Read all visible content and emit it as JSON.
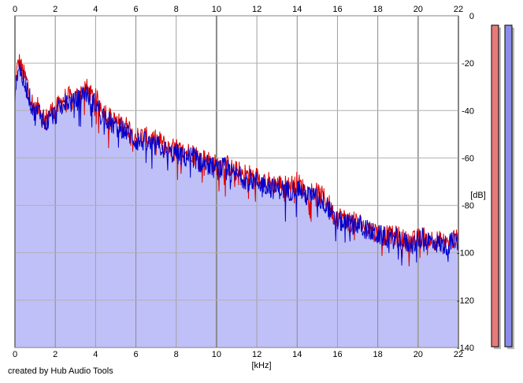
{
  "footer": {
    "credit": "created by Hub Audio Tools"
  },
  "meters": {
    "left": {
      "color": "#e77b7b",
      "level": 0.0
    },
    "right": {
      "color": "#8b8bea",
      "level": 0.0
    }
  },
  "chart_data": {
    "type": "area",
    "title": "",
    "xlabel": "[kHz]",
    "ylabel": "[dB]",
    "xlim": [
      0,
      22
    ],
    "ylim": [
      -140,
      0
    ],
    "x_ticks": [
      0,
      2,
      4,
      6,
      8,
      10,
      12,
      14,
      16,
      18,
      20,
      22
    ],
    "y_ticks": [
      0,
      -20,
      -40,
      -60,
      -80,
      -100,
      -120,
      -140
    ],
    "x_tick_labels": [
      "0",
      "2",
      "4",
      "6",
      "8",
      "10",
      "12",
      "14",
      "16",
      "18",
      "20",
      "22"
    ],
    "y_tick_labels": [
      "0",
      "-20",
      "-40",
      "-60",
      "-80",
      "-100",
      "-120",
      "-140"
    ],
    "grid": true,
    "fill_color": "#c0c0f8",
    "series": [
      {
        "color": "#dd0000",
        "x": [
          0,
          0.1,
          0.2,
          0.4,
          0.6,
          0.8,
          1.0,
          1.2,
          1.5,
          1.8,
          2.0,
          2.3,
          2.6,
          2.9,
          3.2,
          3.5,
          3.8,
          4.0,
          4.3,
          4.6,
          5.0,
          5.4,
          5.8,
          6.0,
          6.4,
          6.8,
          7.2,
          7.6,
          8.0,
          8.4,
          8.8,
          9.2,
          9.6,
          10.0,
          10.4,
          10.8,
          11.2,
          11.6,
          12.0,
          12.4,
          12.8,
          13.2,
          13.6,
          14.0,
          14.4,
          14.8,
          15.2,
          15.5,
          15.8,
          16.2,
          16.6,
          17.0,
          17.4,
          17.8,
          18.2,
          18.6,
          19.0,
          19.4,
          19.8,
          20.2,
          20.6,
          21.0,
          21.4,
          21.8,
          22.0
        ],
        "y": [
          -30,
          -23,
          -19,
          -24,
          -28,
          -35,
          -40,
          -38,
          -44,
          -40,
          -40,
          -36,
          -34,
          -35,
          -33,
          -30,
          -34,
          -35,
          -38,
          -42,
          -45,
          -46,
          -48,
          -51,
          -51,
          -52,
          -53,
          -56,
          -56,
          -58,
          -57,
          -60,
          -61,
          -63,
          -62,
          -65,
          -66,
          -67,
          -68,
          -69,
          -71,
          -71,
          -72,
          -70,
          -74,
          -74,
          -76,
          -78,
          -84,
          -85,
          -87,
          -87,
          -89,
          -91,
          -92,
          -93,
          -93,
          -95,
          -95,
          -93,
          -94,
          -95,
          -96,
          -94,
          -95
        ]
      },
      {
        "color": "#0000cc",
        "x": [
          0,
          0.1,
          0.2,
          0.4,
          0.6,
          0.8,
          1.0,
          1.2,
          1.5,
          1.8,
          2.0,
          2.3,
          2.6,
          2.9,
          3.2,
          3.5,
          3.8,
          4.0,
          4.3,
          4.6,
          5.0,
          5.4,
          5.8,
          6.0,
          6.4,
          6.8,
          7.2,
          7.6,
          8.0,
          8.4,
          8.8,
          9.2,
          9.6,
          10.0,
          10.4,
          10.8,
          11.2,
          11.6,
          12.0,
          12.4,
          12.8,
          13.2,
          13.6,
          14.0,
          14.4,
          14.8,
          15.2,
          15.5,
          15.8,
          16.2,
          16.6,
          17.0,
          17.4,
          17.8,
          18.2,
          18.6,
          19.0,
          19.4,
          19.8,
          20.2,
          20.6,
          21.0,
          21.4,
          21.8,
          22.0
        ],
        "y": [
          -32,
          -25,
          -21,
          -27,
          -31,
          -37,
          -42,
          -40,
          -46,
          -42,
          -42,
          -38,
          -36,
          -37,
          -35,
          -32,
          -36,
          -37,
          -41,
          -44,
          -47,
          -48,
          -51,
          -53,
          -53,
          -55,
          -55,
          -58,
          -58,
          -60,
          -59,
          -62,
          -63,
          -65,
          -64,
          -67,
          -68,
          -69,
          -70,
          -71,
          -73,
          -73,
          -74,
          -72,
          -76,
          -76,
          -78,
          -80,
          -86,
          -87,
          -88,
          -88,
          -90,
          -92,
          -93,
          -94,
          -94,
          -96,
          -96,
          -94,
          -95,
          -96,
          -97,
          -95,
          -96
        ]
      }
    ]
  }
}
